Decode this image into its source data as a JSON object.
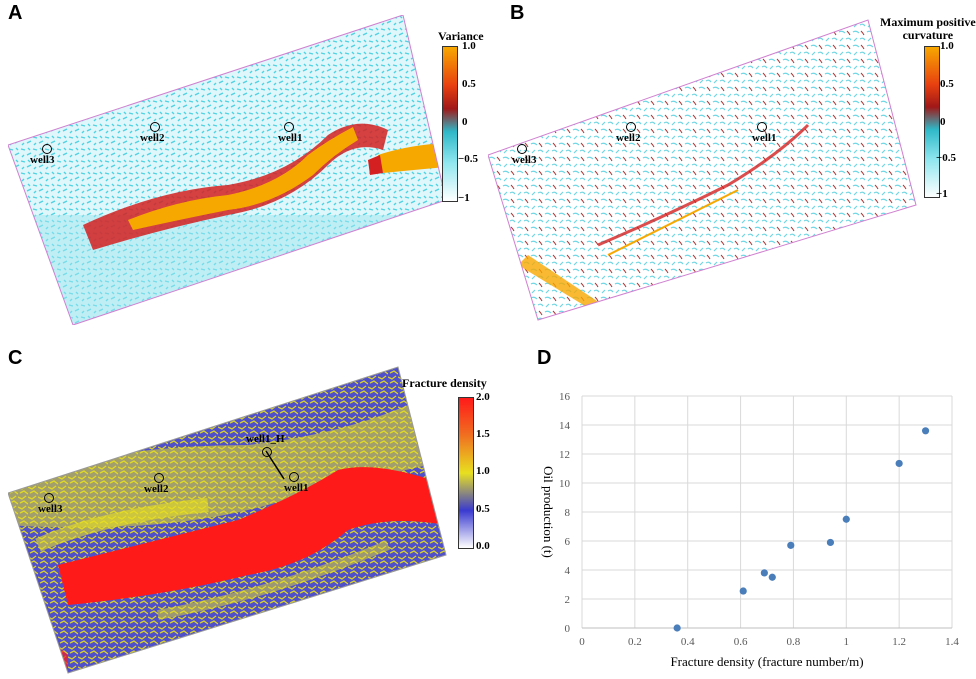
{
  "panels": {
    "A": {
      "letter": "A",
      "colorbar_title": "Variance",
      "colorbar_ticks": [
        "1.0",
        "0.5",
        "0",
        "−0.5",
        "−1"
      ],
      "wells": [
        "well1",
        "well2",
        "well3"
      ],
      "colors": [
        "#f7a800",
        "#d42020",
        "#44d0e0",
        "#ffffff"
      ]
    },
    "B": {
      "letter": "B",
      "colorbar_title_line1": "Maximum positive",
      "colorbar_title_line2": "curvature",
      "colorbar_ticks": [
        "1.0",
        "0.5",
        "0",
        "−0.5",
        "−1"
      ],
      "wells": [
        "well1",
        "well2",
        "well3"
      ],
      "colors": [
        "#f7a800",
        "#d42020",
        "#44d0e0",
        "#ffffff"
      ]
    },
    "C": {
      "letter": "C",
      "colorbar_title": "Fracture density",
      "colorbar_ticks": [
        "2.0",
        "1.5",
        "1.0",
        "0.5",
        "0.0"
      ],
      "wells": [
        "well1",
        "well2",
        "well3",
        "well1_H"
      ],
      "colors": [
        "#ff1a1a",
        "#e8e020",
        "#3a3ad0",
        "#ffffff"
      ]
    },
    "D": {
      "letter": "D"
    }
  },
  "chart_data": {
    "type": "scatter",
    "xlabel": "Fracture density (fracture number/m)",
    "ylabel": "Oil production (t)",
    "xlim": [
      0,
      1.4
    ],
    "ylim": [
      0,
      16
    ],
    "xticks": [
      "0",
      "0.2",
      "0.4",
      "0.6",
      "0.8",
      "1",
      "1.2",
      "1.4"
    ],
    "yticks": [
      "0",
      "2",
      "4",
      "6",
      "8",
      "10",
      "12",
      "14",
      "16"
    ],
    "grid": true,
    "marker_color": "#4a7ebb",
    "series": [
      {
        "x": [
          0.36,
          0.61,
          0.69,
          0.72,
          0.79,
          0.94,
          1.0,
          1.2,
          1.3
        ],
        "y": [
          0.0,
          2.55,
          3.8,
          3.5,
          5.7,
          5.9,
          7.5,
          11.35,
          13.6
        ]
      }
    ]
  }
}
